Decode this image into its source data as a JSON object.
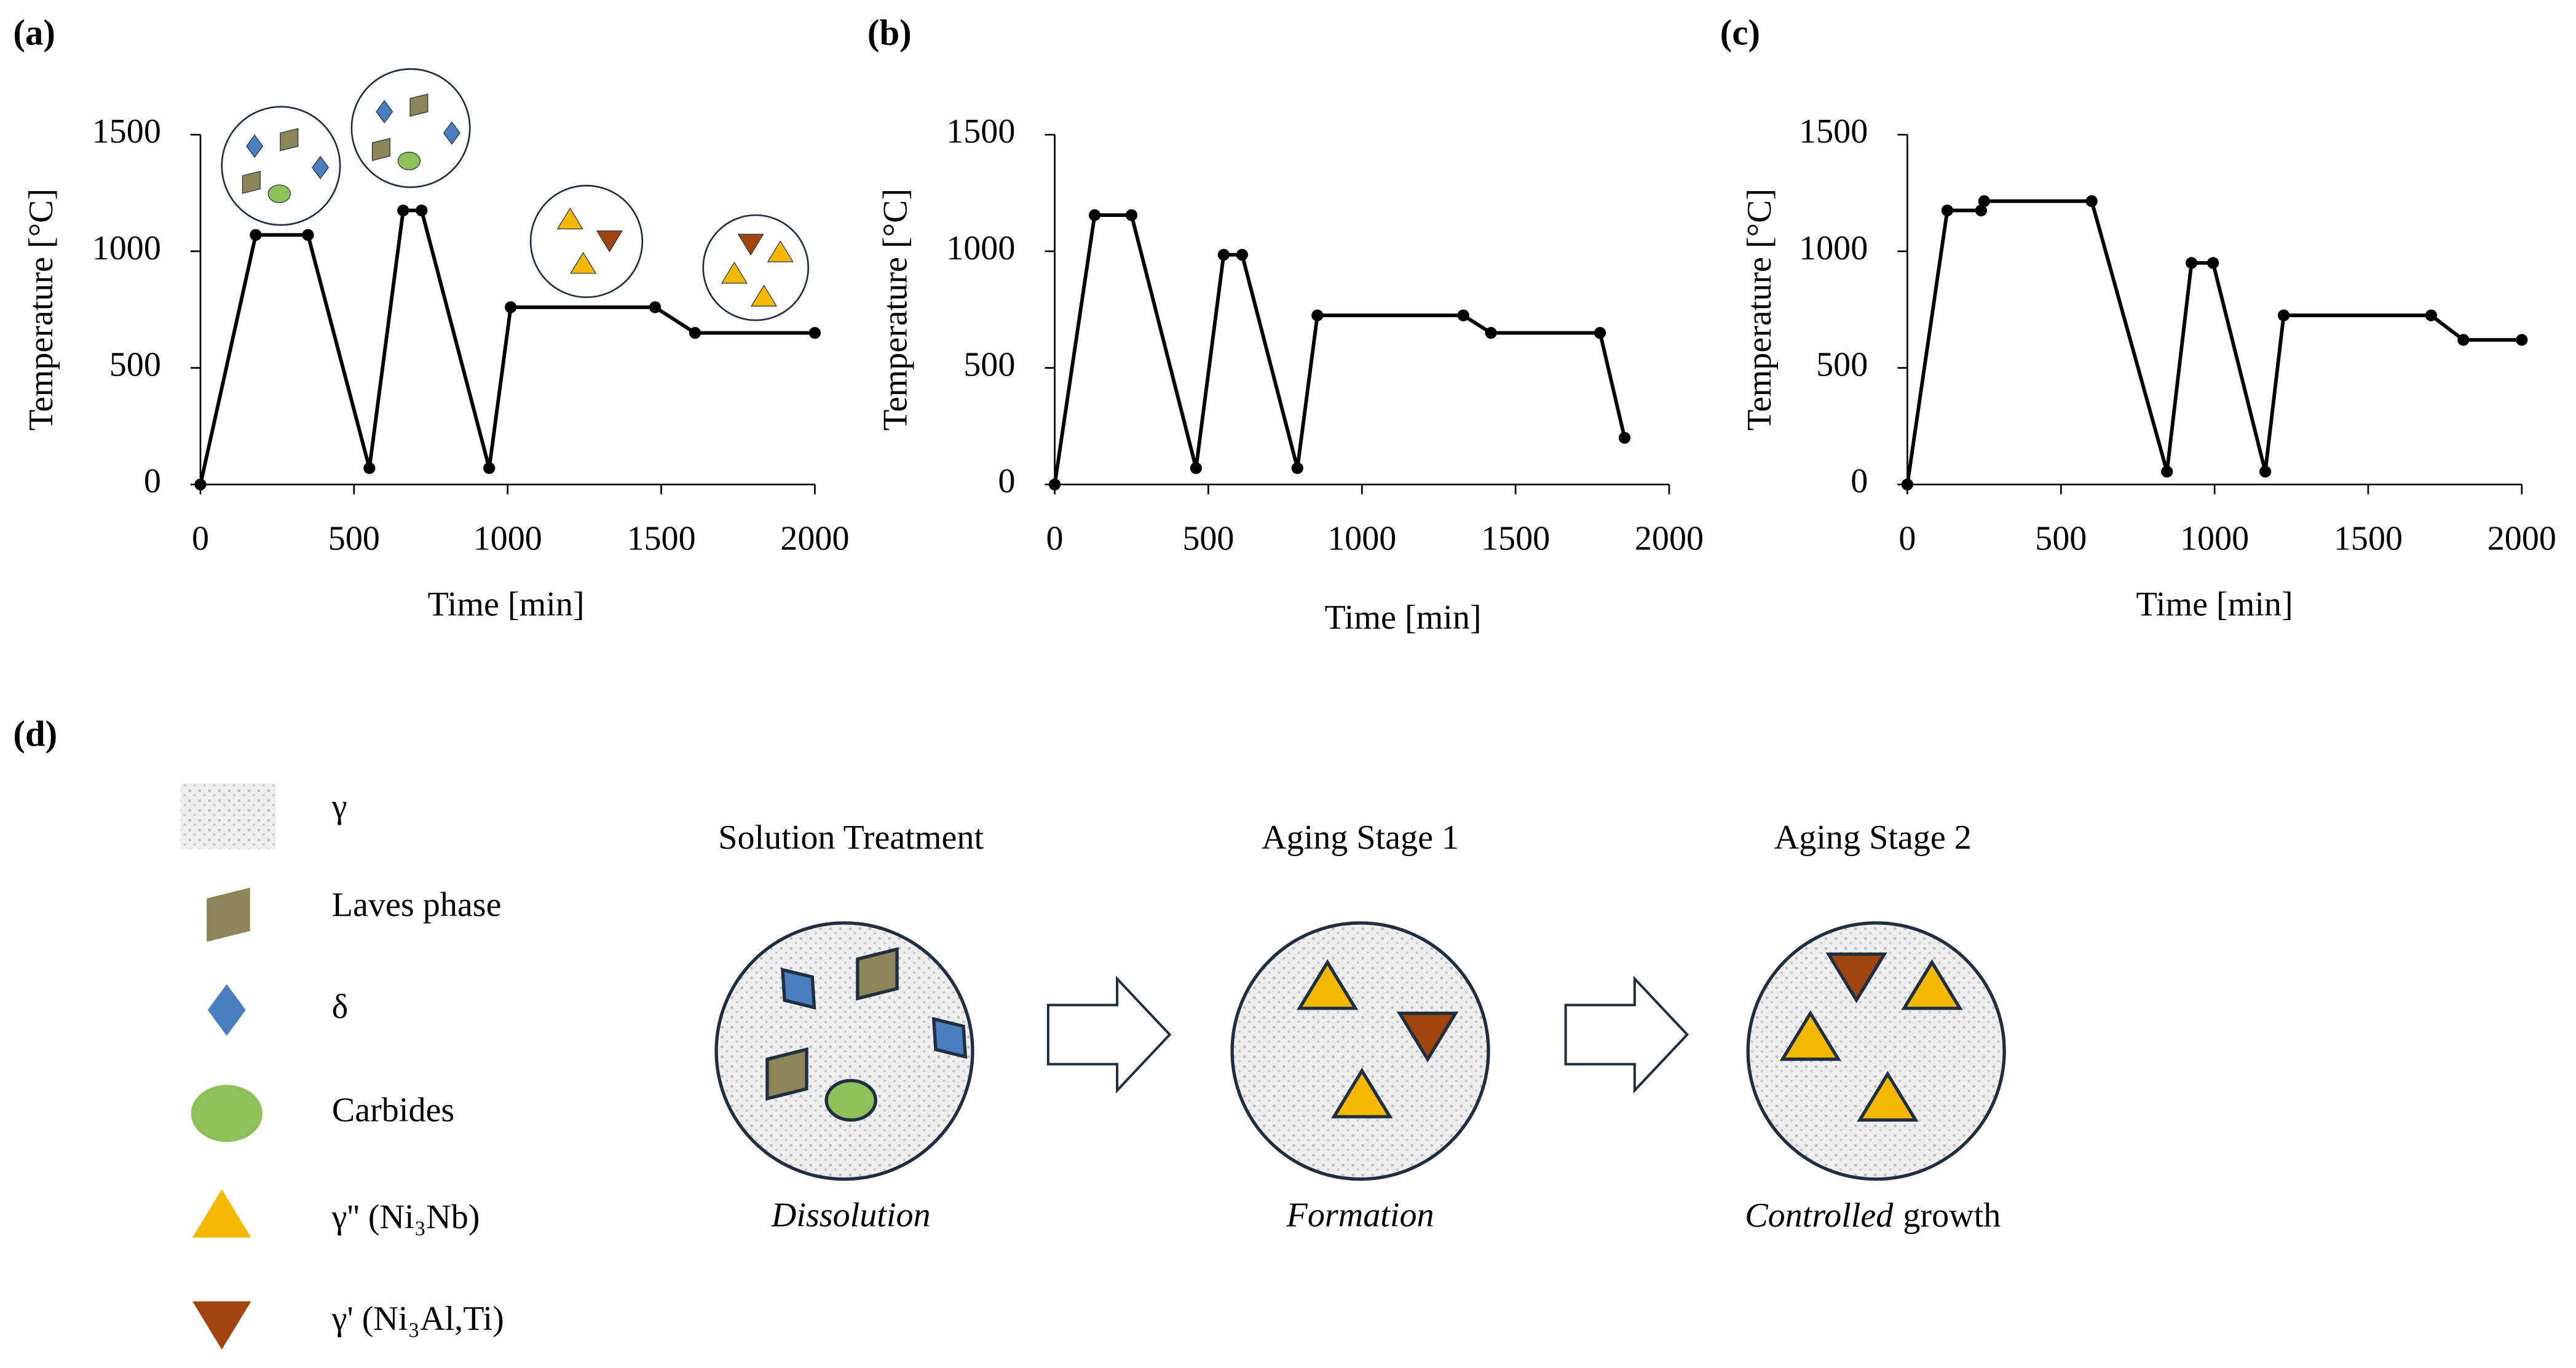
{
  "chart_data": [
    {
      "type": "line",
      "title": "(a)",
      "x_label": "Time [min]",
      "y_label": "Temperature [°C]",
      "x": [
        0,
        180,
        350,
        550,
        660,
        720,
        940,
        1010,
        1480,
        1610,
        2000
      ],
      "series": [
        {
          "color": "#000000",
          "values": [
            0,
            1070,
            1070,
            70,
            1175,
            1175,
            70,
            760,
            760,
            650,
            650
          ]
        }
      ],
      "xlim": [
        0,
        2000
      ],
      "ylim": [
        0,
        1500
      ],
      "xticks": [
        0,
        500,
        1000,
        1500,
        2000
      ],
      "yticks": [
        0,
        500,
        1000,
        1500
      ]
    },
    {
      "type": "line",
      "title": "(b)",
      "x_label": "Time [min]",
      "y_label": "Temperature [°C]",
      "x": [
        0,
        130,
        250,
        460,
        550,
        610,
        790,
        855,
        1330,
        1420,
        1775,
        1855
      ],
      "series": [
        {
          "color": "#000000",
          "values": [
            0,
            1155,
            1155,
            70,
            985,
            985,
            70,
            725,
            725,
            650,
            650,
            200
          ]
        }
      ],
      "xlim": [
        0,
        2000
      ],
      "ylim": [
        0,
        1500
      ],
      "xticks": [
        0,
        500,
        1000,
        1500,
        2000
      ],
      "yticks": [
        0,
        500,
        1000,
        1500
      ]
    },
    {
      "type": "line",
      "title": "(c)",
      "x_label": "Time [min]",
      "y_label": "Temperature [°C]",
      "x": [
        0,
        130,
        240,
        250,
        600,
        845,
        925,
        995,
        1165,
        1225,
        1705,
        1810,
        2000
      ],
      "series": [
        {
          "color": "#000000",
          "values": [
            0,
            1175,
            1175,
            1215,
            1215,
            55,
            950,
            950,
            55,
            725,
            725,
            620,
            620
          ]
        }
      ],
      "xlim": [
        0,
        2000
      ],
      "ylim": [
        0,
        1500
      ],
      "xticks": [
        0,
        500,
        1000,
        1500,
        2000
      ],
      "yticks": [
        0,
        500,
        1000,
        1500
      ]
    }
  ],
  "diagram": {
    "title": "(d)",
    "legend": [
      "γ",
      "Laves phase",
      "δ",
      "Carbides",
      "γ'' (Ni₃Nb)",
      "γ' (Ni₃Al,Ti)"
    ],
    "stages": [
      {
        "title": "Solution Treatment",
        "caption": [
          "Dissolution"
        ]
      },
      {
        "title": "Aging Stage 1",
        "caption": [
          "Formation"
        ]
      },
      {
        "title": "Aging Stage 2",
        "caption": [
          "Controlled",
          "growth"
        ]
      }
    ]
  }
}
